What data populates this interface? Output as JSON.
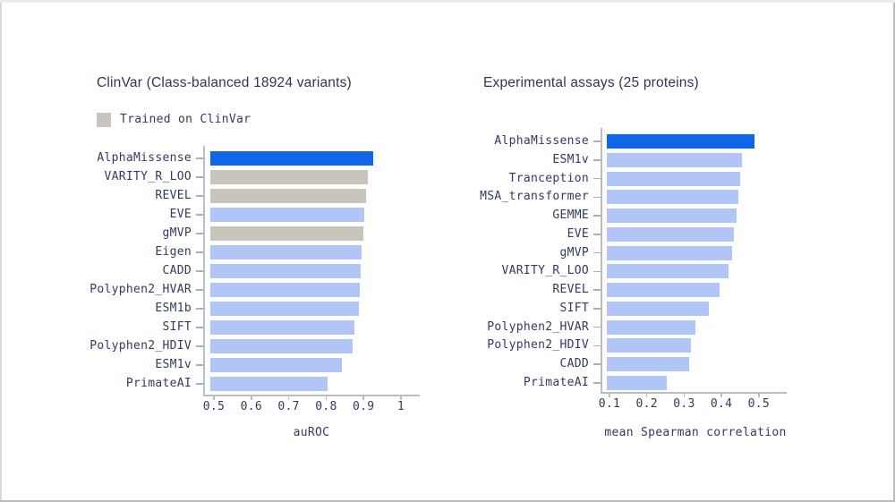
{
  "colors": {
    "highlight_blue": "#1166e8",
    "light_blue": "#b1c6f7",
    "trained_gray": "#c9c5bc",
    "text_navy": "#323b5e",
    "axis_gray": "#b9bdc9"
  },
  "chart_data": [
    {
      "type": "bar",
      "orientation": "horizontal",
      "title": "ClinVar (Class-balanced 18924 variants)",
      "legend": [
        {
          "label": "Trained on ClinVar",
          "color_key": "trained_gray"
        }
      ],
      "xlabel": "auROC",
      "xlim": [
        0.49,
        1.05
      ],
      "xticks": [
        0.5,
        0.6,
        0.7,
        0.8,
        0.9,
        1
      ],
      "xtick_labels": [
        "0.5",
        "0.6",
        "0.7",
        "0.8",
        "0.9",
        "1"
      ],
      "grid": false,
      "categories": [
        "AlphaMissense",
        "VARITY_R_LOO",
        "REVEL",
        "EVE",
        "gMVP",
        "Eigen",
        "CADD",
        "Polyphen2_HVAR",
        "ESM1b",
        "SIFT",
        "Polyphen2_HDIV",
        "ESM1v",
        "PrimateAI"
      ],
      "values": [
        0.927,
        0.911,
        0.907,
        0.901,
        0.899,
        0.895,
        0.892,
        0.89,
        0.888,
        0.876,
        0.871,
        0.842,
        0.804
      ],
      "bar_styles": [
        "highlight",
        "trained",
        "trained",
        "default",
        "trained",
        "default",
        "default",
        "default",
        "default",
        "default",
        "default",
        "default",
        "default"
      ]
    },
    {
      "type": "bar",
      "orientation": "horizontal",
      "title": "Experimental assays (25 proteins)",
      "legend": [],
      "xlabel": "mean Spearman correlation",
      "xlim": [
        0.092,
        0.575
      ],
      "xticks": [
        0.1,
        0.2,
        0.3,
        0.4,
        0.5
      ],
      "xtick_labels": [
        "0.1",
        "0.2",
        "0.3",
        "0.4",
        "0.5"
      ],
      "grid": false,
      "categories": [
        "AlphaMissense",
        "ESM1v",
        "Tranception",
        "MSA_transformer",
        "GEMME",
        "EVE",
        "gMVP",
        "VARITY_R_LOO",
        "REVEL",
        "SIFT",
        "Polyphen2_HVAR",
        "Polyphen2_HDIV",
        "CADD",
        "PrimateAI"
      ],
      "values": [
        0.488,
        0.454,
        0.449,
        0.445,
        0.44,
        0.433,
        0.428,
        0.42,
        0.394,
        0.365,
        0.331,
        0.319,
        0.314,
        0.253
      ],
      "bar_styles": [
        "highlight",
        "default",
        "default",
        "default",
        "default",
        "default",
        "default",
        "default",
        "default",
        "default",
        "default",
        "default",
        "default",
        "default"
      ]
    }
  ]
}
